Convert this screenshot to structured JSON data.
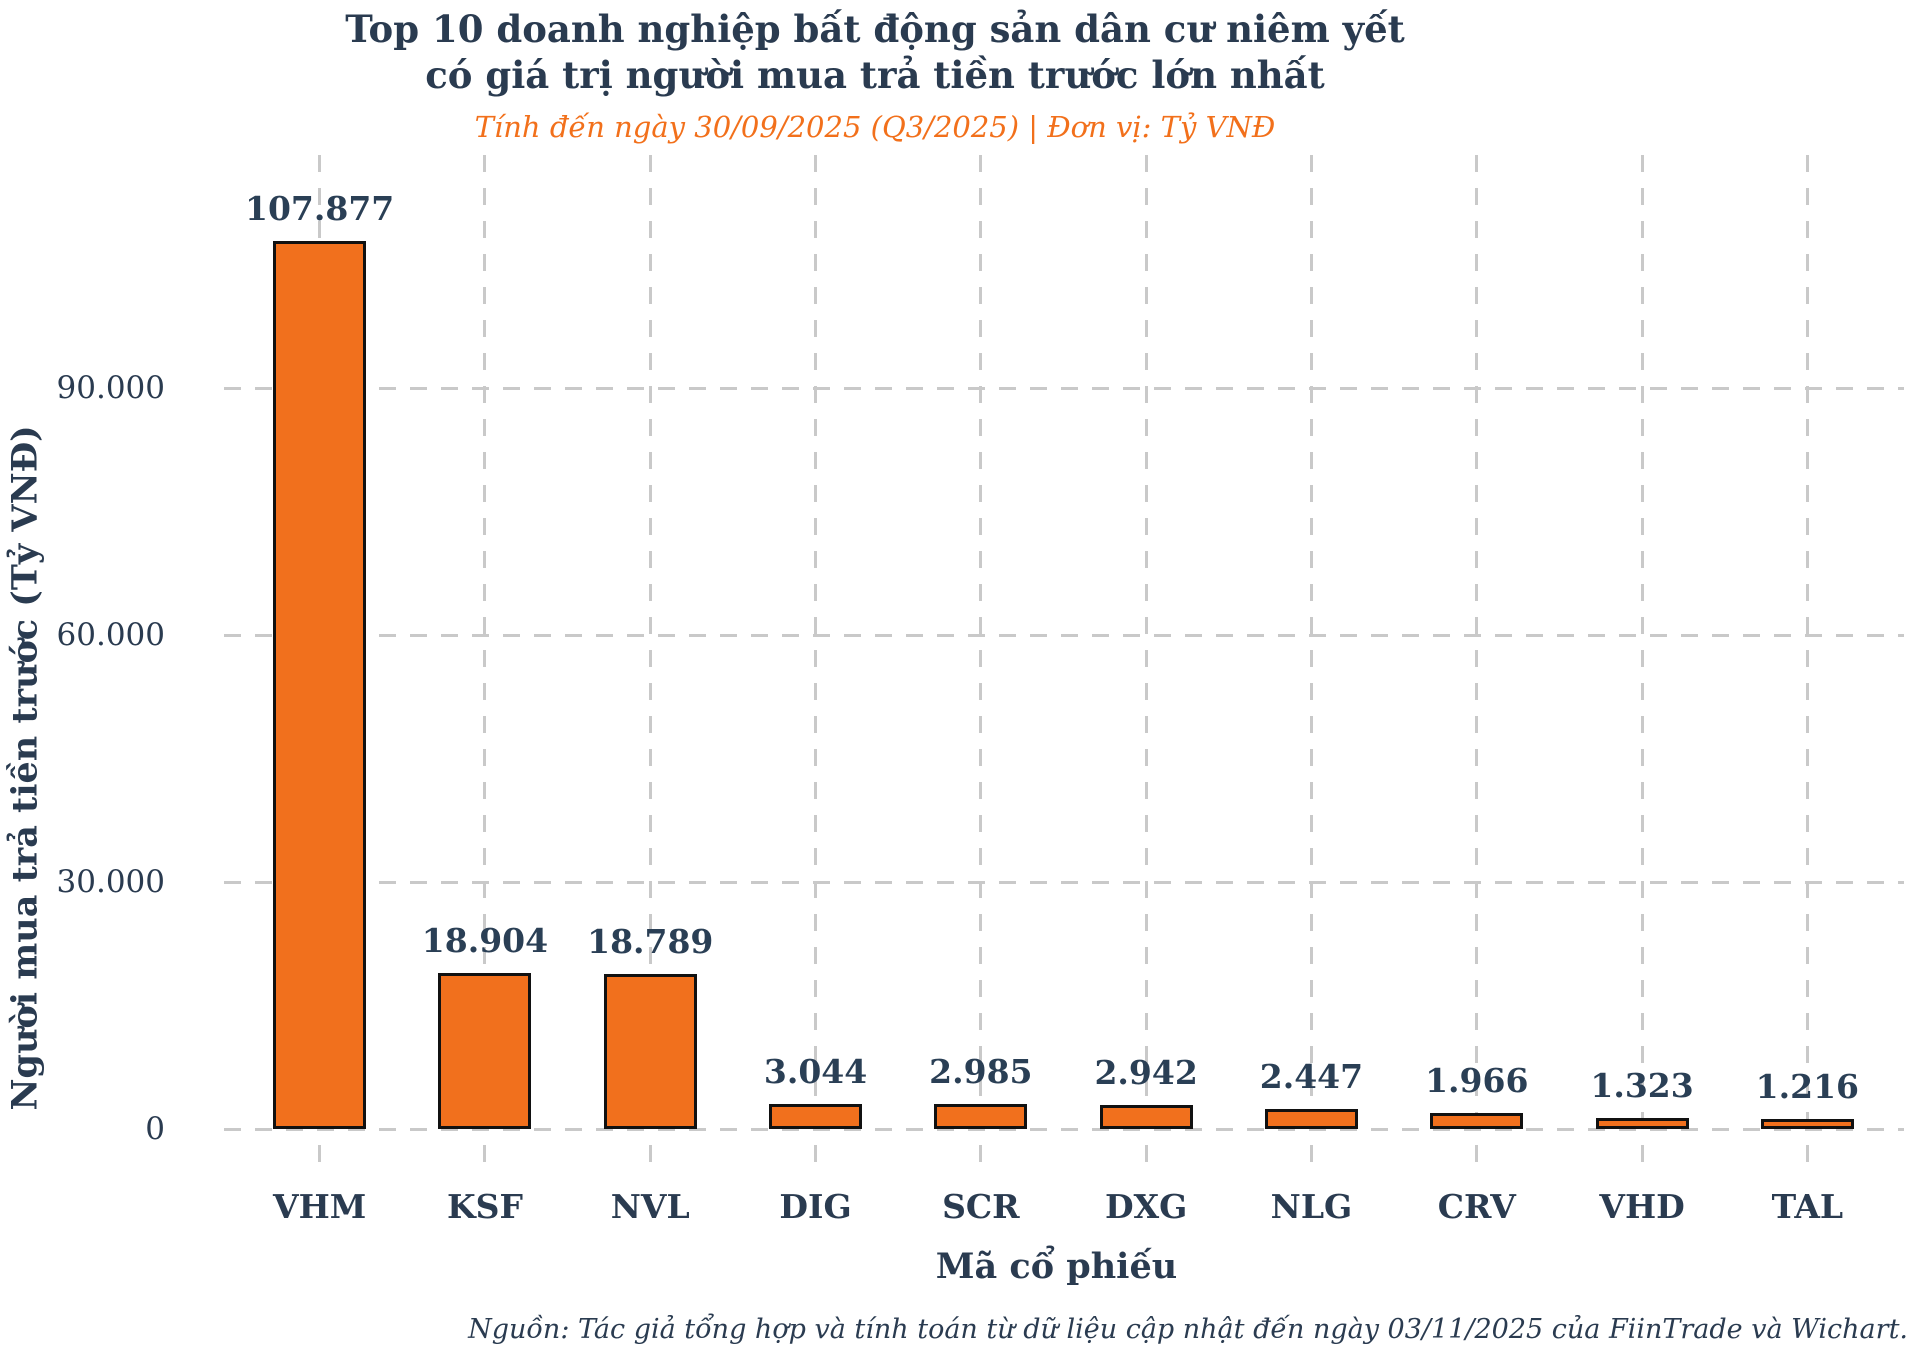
{
  "header": {
    "title_line1": "Top 10 doanh nghiệp bất động sản dân cư niêm yết",
    "title_line2": "có giá trị người mua trả tiền trước lớn nhất",
    "subtitle": "Tính đến ngày 30/09/2025 (Q3/2025) | Đơn vị: Tỷ VNĐ"
  },
  "footer": {
    "source": "Nguồn: Tác giả tổng hợp và tính toán từ dữ liệu cập nhật đến ngày 03/11/2025 của FiinTrade và Wichart."
  },
  "colors": {
    "bar_fill": "#F1701D",
    "bar_edge": "#111111",
    "accent_orange": "#F2701B",
    "navy_text": "#2A3B50",
    "grid_gray": "#C9C9C9",
    "background": "#FFFFFF"
  },
  "chart_data": {
    "type": "bar",
    "title": "Top 10 doanh nghiệp bất động sản dân cư niêm yết có giá trị người mua trả tiền trước lớn nhất",
    "subtitle": "Tính đến ngày 30/09/2025 (Q3/2025) | Đơn vị: Tỷ VNĐ",
    "xlabel": "Mã cổ phiếu",
    "ylabel": "Người mua trả tiền trước (Tỷ VNĐ)",
    "categories": [
      "VHM",
      "KSF",
      "NVL",
      "DIG",
      "SCR",
      "DXG",
      "NLG",
      "CRV",
      "VHD",
      "TAL"
    ],
    "values": [
      107877,
      18904,
      18789,
      3044,
      2985,
      2942,
      2447,
      1966,
      1323,
      1216
    ],
    "value_labels": [
      "107.877",
      "18.904",
      "18.789",
      "3.044",
      "2.985",
      "2.942",
      "2.447",
      "1.966",
      "1.323",
      "1.216"
    ],
    "yticks": [
      0,
      30000,
      60000,
      90000
    ],
    "ytick_labels": [
      "0",
      "30.000",
      "60.000",
      "90.000"
    ],
    "ylim": [
      0,
      118000
    ],
    "grid": "dashed",
    "legend": "none",
    "source": "Nguồn: Tác giả tổng hợp và tính toán từ dữ liệu cập nhật đến ngày 03/11/2025 của FiinTrade và Wichart."
  }
}
